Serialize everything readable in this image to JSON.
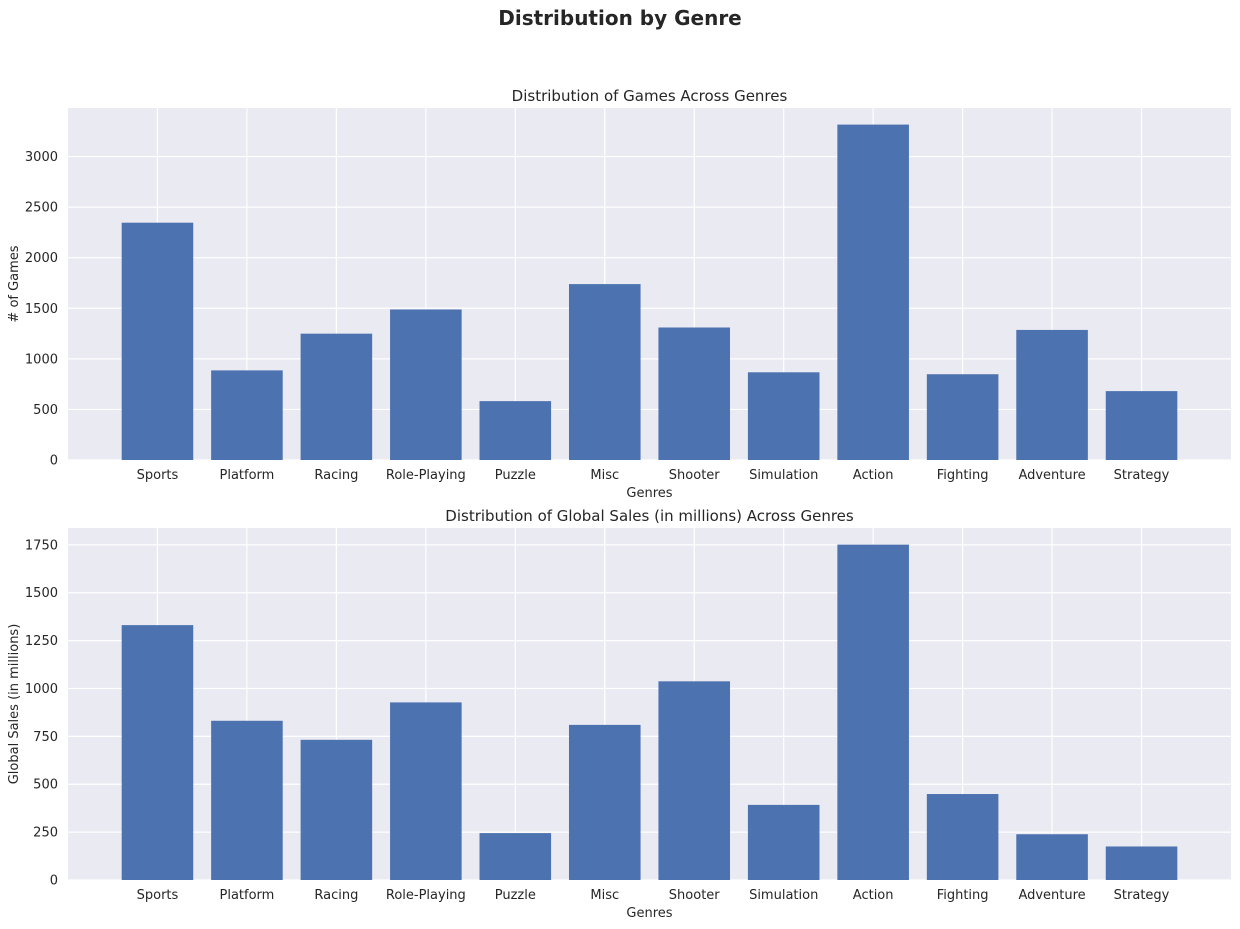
{
  "figure": {
    "title": "Distribution by Genre"
  },
  "chart_data": [
    {
      "type": "bar",
      "title": "Distribution of Games Across Genres",
      "xlabel": "Genres",
      "ylabel": "# of Games",
      "categories": [
        "Sports",
        "Platform",
        "Racing",
        "Role-Playing",
        "Puzzle",
        "Misc",
        "Shooter",
        "Simulation",
        "Action",
        "Fighting",
        "Adventure",
        "Strategy"
      ],
      "values": [
        2346,
        886,
        1249,
        1488,
        582,
        1739,
        1310,
        867,
        3316,
        848,
        1286,
        681
      ],
      "ylim": [
        0,
        3480
      ],
      "yticks": [
        0,
        500,
        1000,
        1500,
        2000,
        2500,
        3000
      ],
      "grid": true,
      "color": "#4c72b0"
    },
    {
      "type": "bar",
      "title": "Distribution of Global Sales (in millions) Across Genres",
      "xlabel": "Genres",
      "ylabel": "Global Sales (in millions)",
      "categories": [
        "Sports",
        "Platform",
        "Racing",
        "Role-Playing",
        "Puzzle",
        "Misc",
        "Shooter",
        "Simulation",
        "Action",
        "Fighting",
        "Adventure",
        "Strategy"
      ],
      "values": [
        1330.9,
        831.4,
        732.0,
        927.4,
        244.9,
        809.96,
        1037.4,
        392.2,
        1751.2,
        448.9,
        239.0,
        175.1
      ],
      "ylim": [
        0,
        1838
      ],
      "yticks": [
        0,
        250,
        500,
        750,
        1000,
        1250,
        1500,
        1750
      ],
      "grid": true,
      "color": "#4c72b0"
    }
  ]
}
